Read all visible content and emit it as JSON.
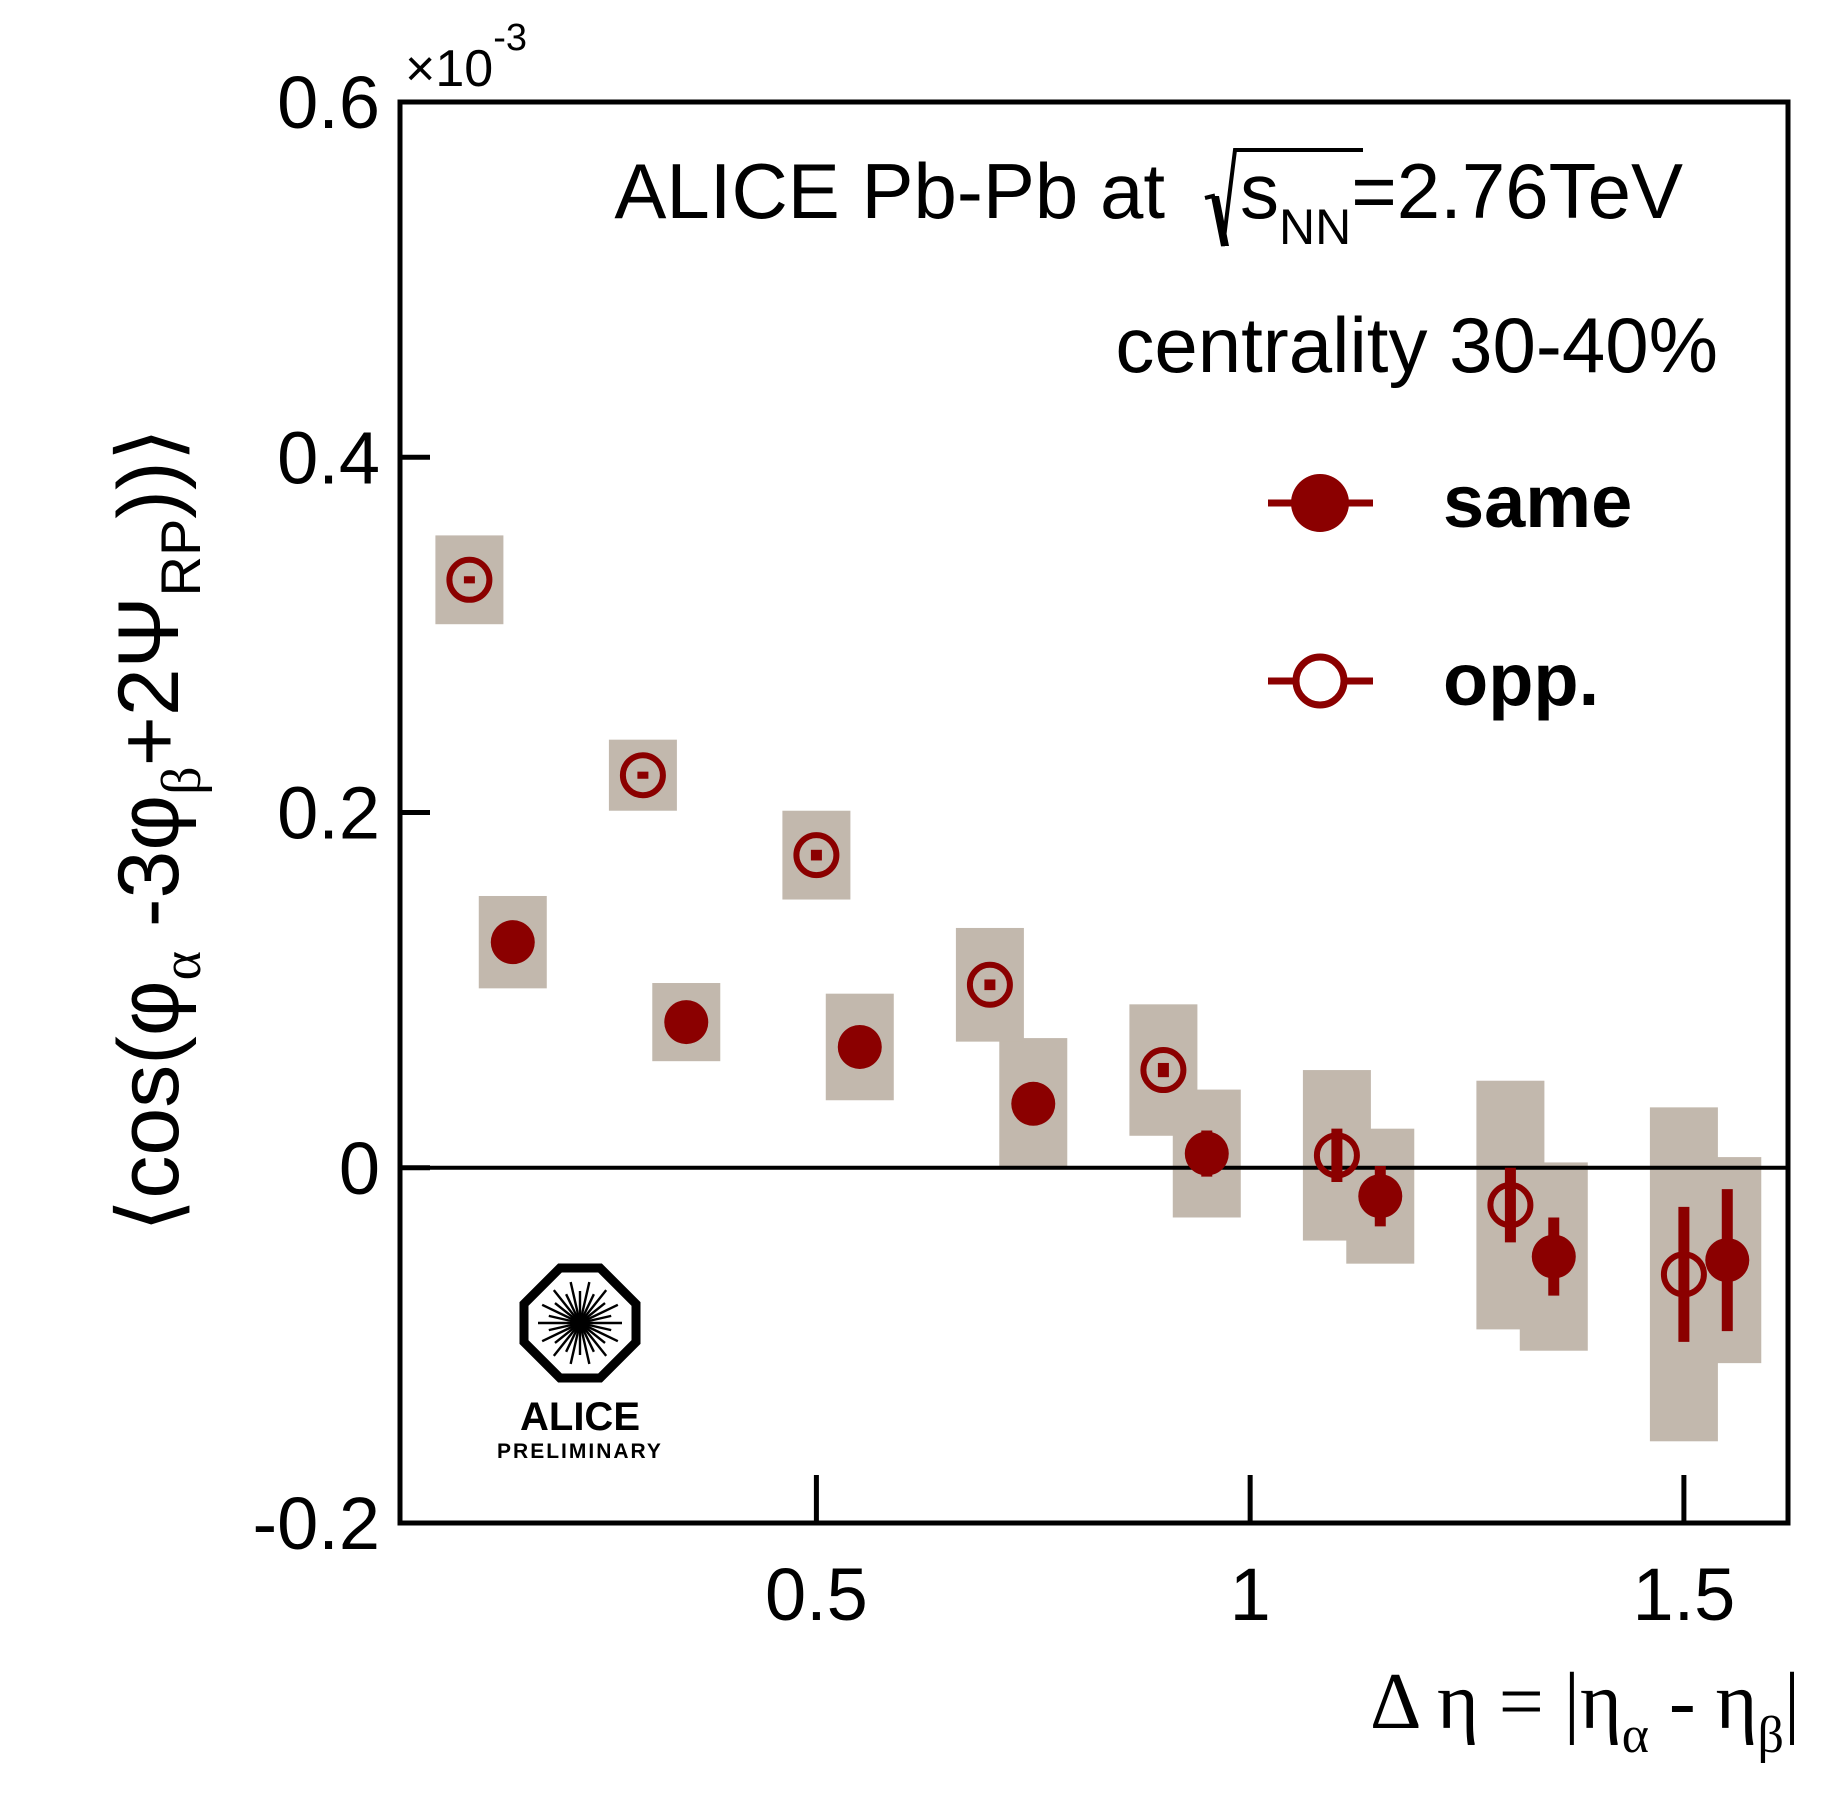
{
  "chart_data": {
    "type": "scatter",
    "title": "ALICE Pb-Pb at",
    "energy_label": {
      "sqrt_arg": "s",
      "sqrt_arg_subscript": "NN",
      "value": "=2.76TeV"
    },
    "subtitle": "centrality 30-40%",
    "xlabel": {
      "prefix": "Δ η = |η",
      "sub_alpha": "α",
      "middle": " - η",
      "sub_beta": "β",
      "suffix": "|"
    },
    "ylabel": {
      "p1": "⟨cos(φ",
      "sub1": "α",
      "p2": " -3φ",
      "sub2": "β",
      "p3": "+2Ψ",
      "sub3": "RP",
      "p4": "))⟩"
    },
    "y_multiplier": {
      "base": "×10",
      "exp": "-3"
    },
    "xlim": [
      0.02,
      1.62
    ],
    "ylim": [
      -0.2,
      0.6
    ],
    "xticks": [
      0.5,
      1,
      1.5
    ],
    "xtick_labels": [
      "0.5",
      "1",
      "1.5"
    ],
    "yticks": [
      -0.2,
      0,
      0.2,
      0.4,
      0.6
    ],
    "ytick_labels": [
      "-0.2",
      "0",
      "0.2",
      "0.4",
      "0.6"
    ],
    "legend_position": "top-right",
    "colors": {
      "marker": "#8b0000",
      "syst_box": "#c2b8ad",
      "frame": "#000000"
    },
    "series": [
      {
        "name": "same",
        "marker": "filled-circle",
        "x": [
          0.15,
          0.35,
          0.55,
          0.75,
          0.95,
          1.15,
          1.35,
          1.55
        ],
        "y": [
          0.127,
          0.082,
          0.068,
          0.036,
          0.008,
          -0.016,
          -0.05,
          -0.052
        ],
        "stat_err": [
          0.002,
          0.002,
          0.003,
          0.003,
          0.013,
          0.017,
          0.022,
          0.04
        ],
        "syst_err": [
          0.026,
          0.022,
          0.03,
          0.037,
          0.036,
          0.038,
          0.053,
          0.058
        ]
      },
      {
        "name": "opp.",
        "marker": "open-circle",
        "x": [
          0.1,
          0.3,
          0.5,
          0.7,
          0.9,
          1.1,
          1.3,
          1.5
        ],
        "y": [
          0.331,
          0.221,
          0.176,
          0.103,
          0.055,
          0.007,
          -0.021,
          -0.06
        ],
        "stat_err": [
          0.002,
          0.002,
          0.003,
          0.003,
          0.004,
          0.015,
          0.021,
          0.038
        ],
        "syst_err": [
          0.025,
          0.02,
          0.025,
          0.032,
          0.037,
          0.048,
          0.07,
          0.094
        ]
      }
    ],
    "logo": {
      "name": "ALICE",
      "label": "PRELIMINARY"
    }
  }
}
